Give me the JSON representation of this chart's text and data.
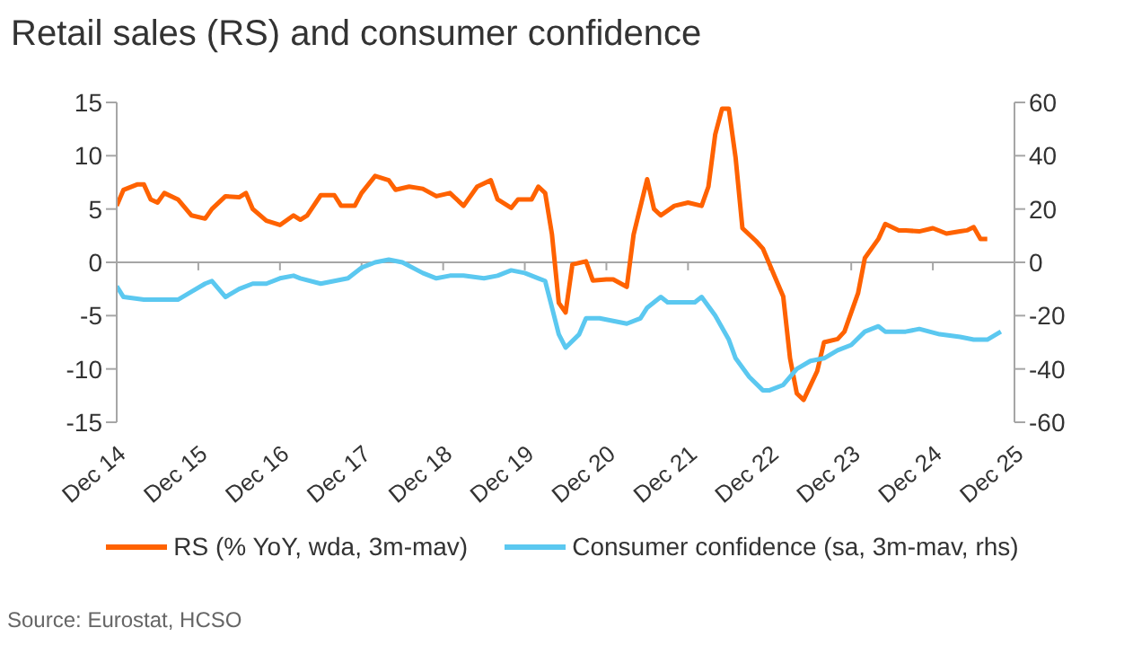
{
  "chart_data": {
    "type": "line",
    "title": "Retail sales (RS) and consumer confidence",
    "annotations": [
      "Source: Eurostat, HCSO"
    ],
    "xlim": [
      "2014-12",
      "2025-12"
    ],
    "xticks": [
      {
        "value": "2014-12",
        "label": "Dec 14"
      },
      {
        "value": "2015-12",
        "label": "Dec 15"
      },
      {
        "value": "2016-12",
        "label": "Dec 16"
      },
      {
        "value": "2017-12",
        "label": "Dec 17"
      },
      {
        "value": "2018-12",
        "label": "Dec 18"
      },
      {
        "value": "2019-12",
        "label": "Dec 19"
      },
      {
        "value": "2020-12",
        "label": "Dec 20"
      },
      {
        "value": "2021-12",
        "label": "Dec 21"
      },
      {
        "value": "2022-12",
        "label": "Dec 22"
      },
      {
        "value": "2023-12",
        "label": "Dec 23"
      },
      {
        "value": "2024-12",
        "label": "Dec 24"
      },
      {
        "value": "2025-12",
        "label": "Dec 25"
      }
    ],
    "ylim": [
      -15,
      15
    ],
    "yticks": [
      -15,
      -10,
      -5,
      0,
      5,
      10,
      15
    ],
    "y2lim": [
      -60,
      60
    ],
    "y2ticks": [
      -60,
      -40,
      -20,
      0,
      20,
      40,
      60
    ],
    "ref_lines": [
      {
        "axis": "y",
        "value": 0,
        "color": "#a6a6a6"
      }
    ],
    "grid": false,
    "legend": "bottom",
    "marker": "none",
    "line_style": "solid",
    "series": [
      {
        "name": "RS (% YoY, wda, 3m-mav)",
        "color": "#ff6200",
        "x": [
          "2014-12",
          "2015-01",
          "2015-03",
          "2015-04",
          "2015-05",
          "2015-06",
          "2015-07",
          "2015-09",
          "2015-11",
          "2016-01",
          "2016-02",
          "2016-04",
          "2016-06",
          "2016-07",
          "2016-08",
          "2016-10",
          "2016-12",
          "2017-02",
          "2017-03",
          "2017-04",
          "2017-06",
          "2017-08",
          "2017-09",
          "2017-11",
          "2017-12",
          "2018-02",
          "2018-04",
          "2018-05",
          "2018-07",
          "2018-09",
          "2018-11",
          "2019-01",
          "2019-03",
          "2019-05",
          "2019-07",
          "2019-08",
          "2019-10",
          "2019-11",
          "2020-01",
          "2020-02",
          "2020-03",
          "2020-04",
          "2020-05",
          "2020-06",
          "2020-07",
          "2020-09",
          "2020-10",
          "2020-12",
          "2021-01",
          "2021-03",
          "2021-04",
          "2021-06",
          "2021-07",
          "2021-08",
          "2021-10",
          "2021-12",
          "2022-02",
          "2022-03",
          "2022-04",
          "2022-05",
          "2022-06",
          "2022-07",
          "2022-08",
          "2022-10",
          "2022-11",
          "2023-01",
          "2023-02",
          "2023-03",
          "2023-04",
          "2023-05",
          "2023-07",
          "2023-08",
          "2023-10",
          "2023-11",
          "2024-01",
          "2024-02",
          "2024-04",
          "2024-05",
          "2024-07",
          "2024-08",
          "2024-10",
          "2024-12",
          "2025-02",
          "2025-04",
          "2025-05",
          "2025-06",
          "2025-07",
          "2025-08"
        ],
        "values": [
          5.3,
          6.8,
          7.3,
          7.3,
          5.9,
          5.6,
          6.5,
          5.9,
          4.4,
          4.1,
          5,
          6.2,
          6.1,
          6.5,
          5,
          3.9,
          3.5,
          4.4,
          4,
          4.4,
          6.3,
          6.3,
          5.3,
          5.3,
          6.5,
          8.1,
          7.7,
          6.8,
          7.1,
          6.9,
          6.2,
          6.5,
          5.3,
          7.1,
          7.7,
          5.9,
          5.1,
          5.9,
          5.9,
          7.1,
          6.5,
          2.6,
          -3.8,
          -4.7,
          -0.2,
          0.1,
          -1.7,
          -1.6,
          -1.6,
          -2.3,
          2.6,
          7.8,
          5,
          4.4,
          5.3,
          5.6,
          5.3,
          7.1,
          12,
          14.4,
          14.4,
          9.8,
          3.2,
          2,
          1.3,
          -1.7,
          -3.2,
          -9,
          -12.3,
          -12.9,
          -10.2,
          -7.5,
          -7.2,
          -6.5,
          -2.9,
          0.4,
          2.2,
          3.6,
          3,
          3,
          2.9,
          3.2,
          2.7,
          2.9,
          3,
          3.3,
          2.2,
          2.2
        ]
      },
      {
        "name": "Consumer confidence (sa, 3m-mav, rhs)",
        "color": "#5bc8f0",
        "axis": "y2",
        "x": [
          "2014-12",
          "2015-01",
          "2015-04",
          "2015-07",
          "2015-09",
          "2015-11",
          "2016-01",
          "2016-02",
          "2016-04",
          "2016-06",
          "2016-08",
          "2016-10",
          "2016-12",
          "2017-02",
          "2017-03",
          "2017-06",
          "2017-08",
          "2017-10",
          "2017-12",
          "2018-02",
          "2018-04",
          "2018-06",
          "2018-09",
          "2018-11",
          "2019-01",
          "2019-03",
          "2019-06",
          "2019-08",
          "2019-10",
          "2019-12",
          "2020-02",
          "2020-03",
          "2020-04",
          "2020-05",
          "2020-06",
          "2020-08",
          "2020-09",
          "2020-11",
          "2021-01",
          "2021-03",
          "2021-05",
          "2021-06",
          "2021-08",
          "2021-09",
          "2021-11",
          "2022-01",
          "2022-02",
          "2022-04",
          "2022-06",
          "2022-07",
          "2022-09",
          "2022-11",
          "2022-12",
          "2023-02",
          "2023-04",
          "2023-06",
          "2023-08",
          "2023-10",
          "2023-12",
          "2024-02",
          "2024-04",
          "2024-05",
          "2024-08",
          "2024-10",
          "2025-01",
          "2025-04",
          "2025-06",
          "2025-08",
          "2025-10"
        ],
        "values": [
          -9,
          -13,
          -14,
          -14,
          -14,
          -11,
          -8,
          -7,
          -13,
          -10,
          -8,
          -8,
          -6,
          -5,
          -6,
          -8,
          -7,
          -6,
          -2,
          0,
          1,
          0,
          -4,
          -6,
          -5,
          -5,
          -6,
          -5,
          -3,
          -4,
          -6,
          -7,
          -17,
          -27,
          -32,
          -27,
          -21,
          -21,
          -22,
          -23,
          -21,
          -17,
          -13,
          -15,
          -15,
          -15,
          -13,
          -20,
          -29,
          -36,
          -43,
          -48,
          -48,
          -46,
          -40,
          -37,
          -36,
          -33,
          -31,
          -26,
          -24,
          -26,
          -26,
          -25,
          -27,
          -28,
          -29,
          -29,
          -26
        ]
      }
    ]
  }
}
